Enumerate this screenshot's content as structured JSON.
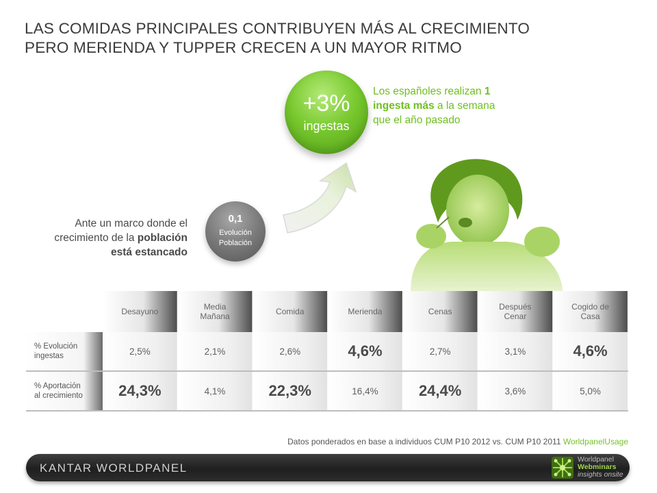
{
  "title": {
    "line1": "LAS COMIDAS PRINCIPALES CONTRIBUYEN MÁS AL CRECIMIENTO",
    "line2": "PERO MERIENDA Y TUPPER CRECEN A UN MAYOR RITMO"
  },
  "green_bubble": {
    "value": "+3%",
    "label": "ingestas",
    "color": "#79c92f"
  },
  "green_note": {
    "p1": "Los españoles realizan ",
    "b1": "1",
    "b2": "ingesta más",
    "p2": " a la semana",
    "p3": "que el año pasado"
  },
  "grey_bubble": {
    "value": "0,1",
    "label1": "Evolución",
    "label2": "Población"
  },
  "left_note": {
    "line1": "Ante un marco donde el",
    "line2a": "crecimiento de la ",
    "line2b": "población",
    "line3": "está estancado"
  },
  "table": {
    "headers": [
      {
        "l1": "Desayuno",
        "l2": ""
      },
      {
        "l1": "Media",
        "l2": "Mañana"
      },
      {
        "l1": "Comida",
        "l2": ""
      },
      {
        "l1": "Merienda",
        "l2": ""
      },
      {
        "l1": "Cenas",
        "l2": ""
      },
      {
        "l1": "Después",
        "l2": "Cenar"
      },
      {
        "l1": "Cogido de",
        "l2": "Casa"
      }
    ],
    "rows": [
      {
        "label1": "% Evolución",
        "label2": "ingestas",
        "values": [
          "2,5%",
          "2,1%",
          "2,6%",
          "4,6%",
          "2,7%",
          "3,1%",
          "4,6%"
        ],
        "highlight": [
          false,
          false,
          false,
          true,
          false,
          false,
          true
        ]
      },
      {
        "label1": "% Aportación",
        "label2": "al crecimiento",
        "values": [
          "24,3%",
          "4,1%",
          "22,3%",
          "16,4%",
          "24,4%",
          "3,6%",
          "5,0%"
        ],
        "highlight": [
          true,
          false,
          true,
          false,
          true,
          false,
          false
        ]
      }
    ]
  },
  "footnote": {
    "text": "Datos ponderados en base a individuos CUM P10 2012 vs. CUM P10 2011 ",
    "brand": "WorldpanelUsage"
  },
  "footer": {
    "logo_text": "KANTAR WORLDPANEL",
    "badge_line1": "Worldpanel",
    "badge_line2": "Webminars",
    "badge_line3": "insights onsite"
  },
  "icons": [
    "up-arrow-icon",
    "network-logo-icon"
  ],
  "colors": {
    "accent_green": "#77c22a",
    "header_dark": "#5a5a5a",
    "row_grey": "#e8e8e8"
  }
}
